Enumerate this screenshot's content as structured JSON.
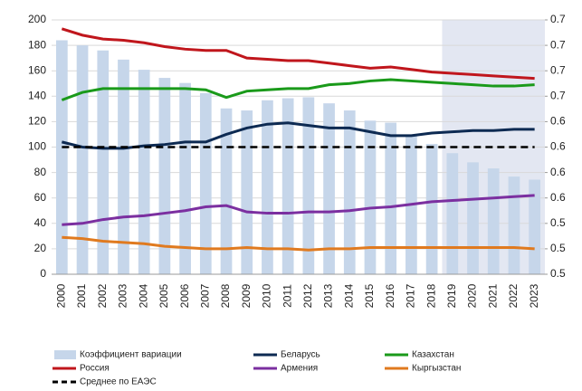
{
  "chart_data": {
    "type": "combo",
    "categories": [
      "2000",
      "2001",
      "2002",
      "2003",
      "2004",
      "2005",
      "2006",
      "2007",
      "2008",
      "2009",
      "2010",
      "2011",
      "2012",
      "2013",
      "2014",
      "2015",
      "2016",
      "2017",
      "2018",
      "2019",
      "2020",
      "2021",
      "2022",
      "2023"
    ],
    "ylim": [
      0,
      200
    ],
    "yticks": [
      0,
      20,
      40,
      60,
      80,
      100,
      120,
      140,
      160,
      180,
      200
    ],
    "y2lim": [
      0.5,
      0.75
    ],
    "y2ticks": [
      {
        "value": 0.5,
        "label": "0.5"
      },
      {
        "value": 0.525,
        "label": "0.5"
      },
      {
        "value": 0.55,
        "label": "0.5"
      },
      {
        "value": 0.575,
        "label": "0.6"
      },
      {
        "value": 0.6,
        "label": "0.6"
      },
      {
        "value": 0.625,
        "label": "0.6"
      },
      {
        "value": 0.65,
        "label": "0.6"
      },
      {
        "value": 0.675,
        "label": "0.7"
      },
      {
        "value": 0.7,
        "label": "0.7"
      },
      {
        "value": 0.725,
        "label": "0.7"
      },
      {
        "value": 0.75,
        "label": "0.7"
      }
    ],
    "grid": true,
    "series": [
      {
        "name": "Коэффициент вариации",
        "type": "bar",
        "axis": "y2",
        "color": "#c6d6ea",
        "values": [
          0.73,
          0.725,
          0.72,
          0.711,
          0.701,
          0.693,
          0.688,
          0.678,
          0.663,
          0.661,
          0.671,
          0.673,
          0.674,
          0.668,
          0.661,
          0.651,
          0.649,
          0.636,
          0.628,
          0.619,
          0.61,
          0.604,
          0.596,
          0.593
        ]
      },
      {
        "name": "Беларусь",
        "type": "line",
        "color": "#0d2a52",
        "values": [
          104,
          100,
          99,
          99,
          101,
          102,
          104,
          104,
          110,
          115,
          118,
          119,
          117,
          115,
          115,
          112,
          109,
          109,
          111,
          112,
          113,
          113,
          114,
          114
        ]
      },
      {
        "name": "Казахстан",
        "type": "line",
        "color": "#1a9a1a",
        "values": [
          137,
          143,
          146,
          146,
          146,
          146,
          146,
          145,
          139,
          144,
          145,
          146,
          146,
          149,
          150,
          152,
          153,
          152,
          151,
          150,
          149,
          148,
          148,
          149
        ]
      },
      {
        "name": "Россия",
        "type": "line",
        "color": "#c0161c",
        "values": [
          193,
          188,
          185,
          184,
          182,
          179,
          177,
          176,
          176,
          170,
          169,
          168,
          168,
          166,
          164,
          162,
          163,
          161,
          159,
          158,
          157,
          156,
          155,
          154
        ]
      },
      {
        "name": "Армения",
        "type": "line",
        "color": "#7b2fa0",
        "values": [
          39,
          40,
          43,
          45,
          46,
          48,
          50,
          53,
          54,
          49,
          48,
          48,
          49,
          49,
          50,
          52,
          53,
          55,
          57,
          58,
          59,
          60,
          61,
          62
        ]
      },
      {
        "name": "Кыргызстан",
        "type": "line",
        "color": "#e07a1f",
        "values": [
          29,
          28,
          26,
          25,
          24,
          22,
          21,
          20,
          20,
          21,
          20,
          20,
          19,
          20,
          20,
          21,
          21,
          21,
          21,
          21,
          21,
          21,
          21,
          20
        ]
      },
      {
        "name": "Среднее по ЕАЭС",
        "type": "line",
        "dash": true,
        "color": "#000000",
        "values": [
          100,
          100,
          100,
          100,
          100,
          100,
          100,
          100,
          100,
          100,
          100,
          100,
          100,
          100,
          100,
          100,
          100,
          100,
          100,
          100,
          100,
          100,
          100,
          100
        ]
      }
    ]
  }
}
